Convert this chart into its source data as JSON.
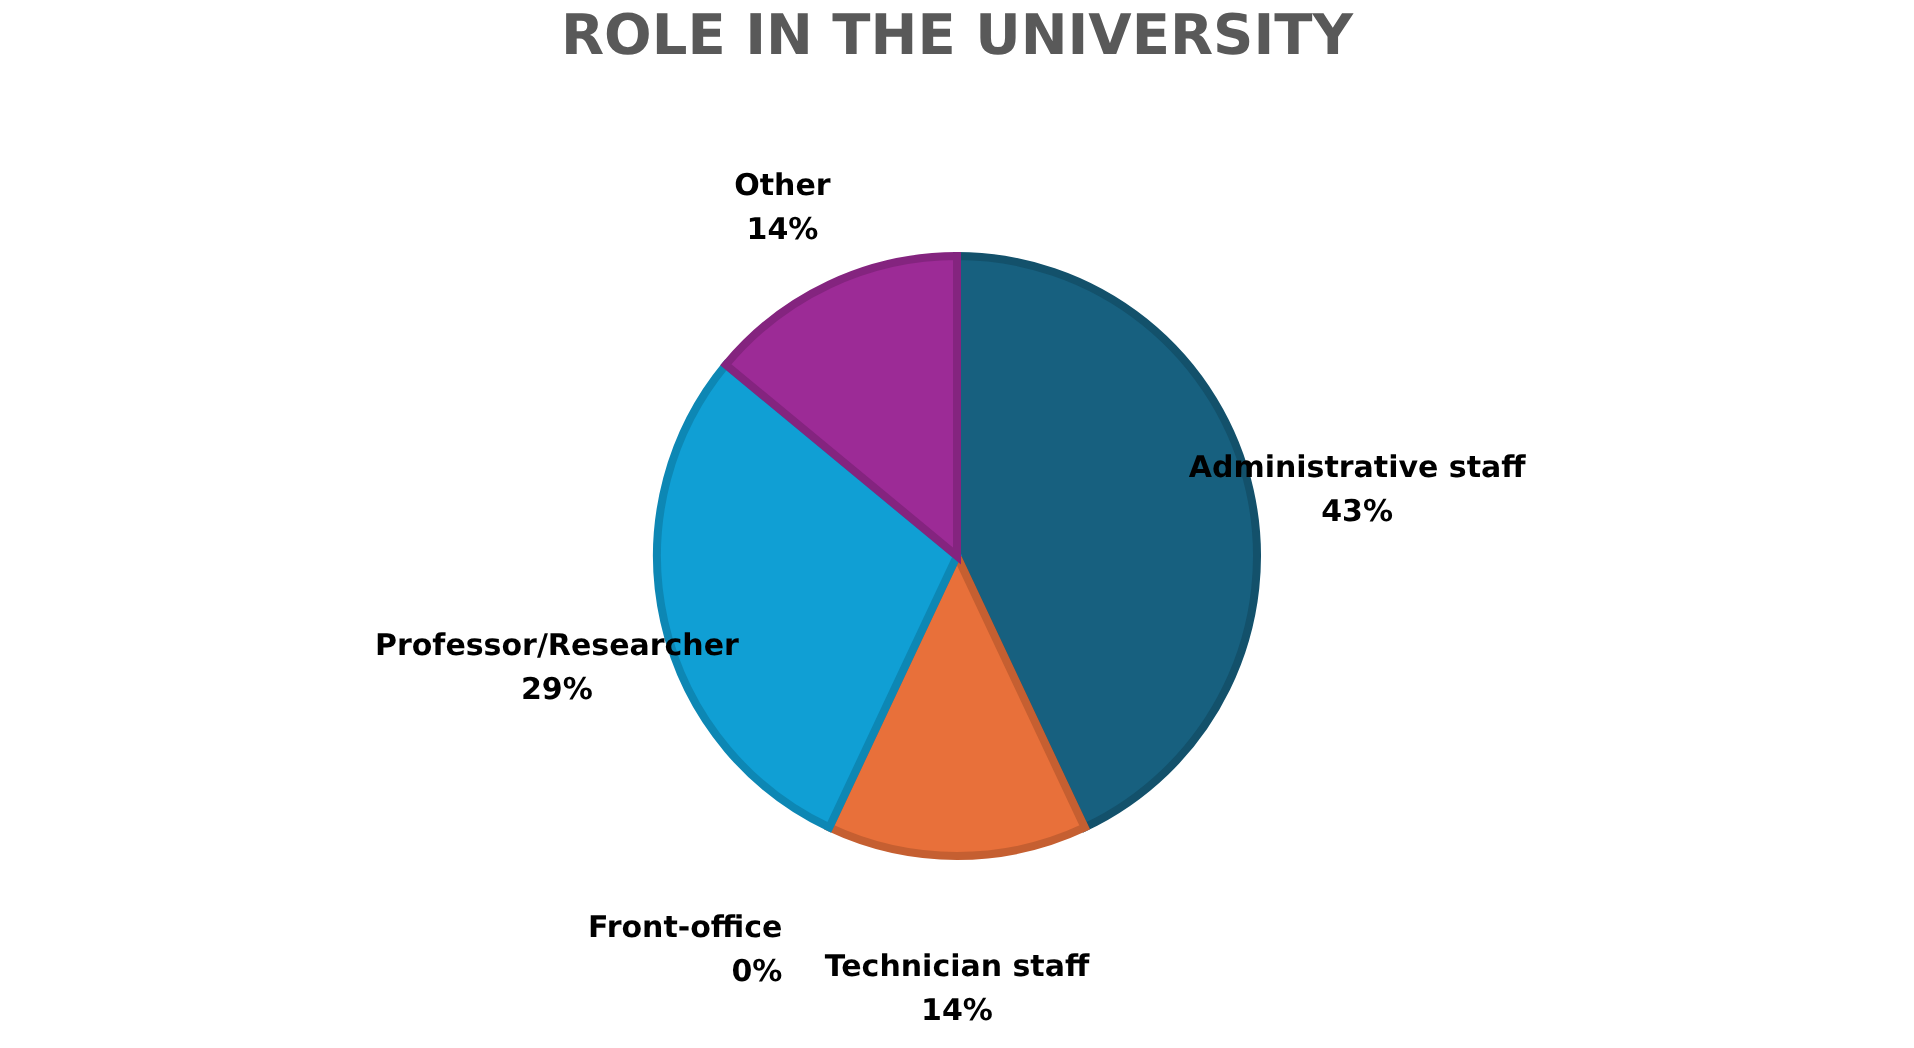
{
  "chart_data": {
    "type": "pie",
    "title": "ROLE IN THE UNIVERSITY",
    "categories": [
      "Administrative staff",
      "Technician staff",
      "Front-office",
      "Professor/Researcher",
      "Other"
    ],
    "values": [
      43,
      14,
      0,
      29,
      14
    ],
    "value_labels": [
      "43%",
      "14%",
      "0%",
      "29%",
      "14%"
    ],
    "colors": [
      "#17607f",
      "#e8703a",
      "#f2b43c",
      "#109fd4",
      "#9c2b96"
    ],
    "legend": false
  }
}
